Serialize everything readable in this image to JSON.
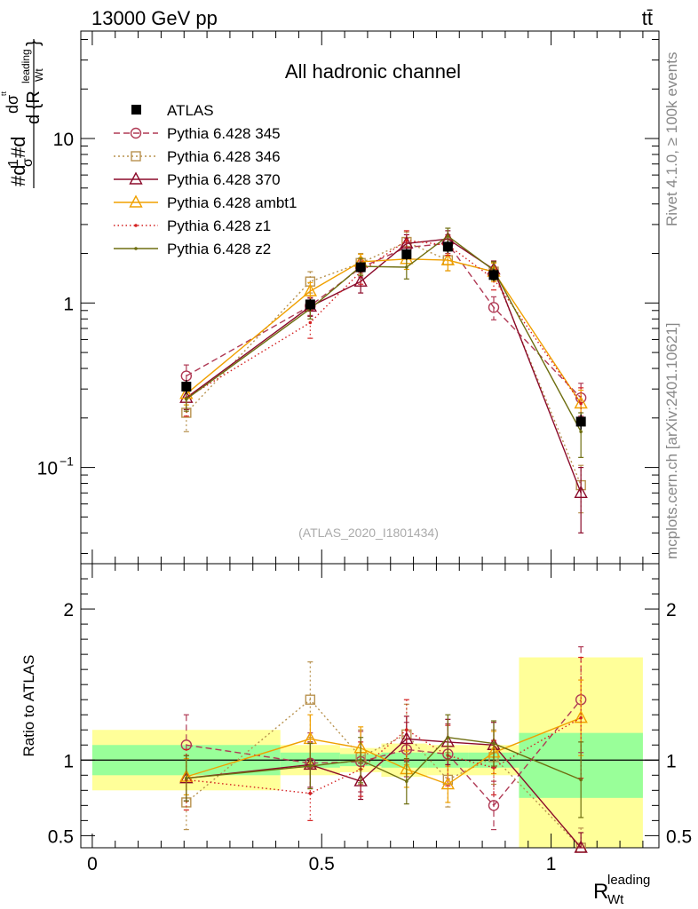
{
  "header": {
    "energy_label": "13000 GeV pp",
    "process_label": "tt̄"
  },
  "side_labels": {
    "rivet_label": "Rivet 4.1.0, ≥ 100k events",
    "source_label": "mcplots.cern.ch [arXiv:2401.10621]"
  },
  "chart_data": [
    {
      "type": "line",
      "panel": "main",
      "title": "All hadronic channel",
      "analysis_tag": "(ATLAS_2020_I1801434)",
      "ylabel_fragments": {
        "hash_d": "#d",
        "one": "1",
        "sigma": "σ",
        "hash_d2": "#d",
        "d_sigma": "dσ",
        "d_sigma_sup": "ᵗᵗ",
        "denominator_d": "d {R",
        "denominator_sup": "leading",
        "denominator_sub": "Wt",
        "close_brace": "}"
      },
      "yscale": "log",
      "ylim": [
        0.026,
        45
      ],
      "xlim": [
        -0.025,
        1.235
      ],
      "yticks": [
        {
          "value": 0.1,
          "base": "10",
          "exp": "−1"
        },
        {
          "value": 1,
          "label": "1"
        },
        {
          "value": 10,
          "label": "10"
        }
      ],
      "x": [
        0.205,
        0.475,
        0.585,
        0.685,
        0.775,
        0.875,
        1.065
      ],
      "bins": [
        [
          0.0,
          0.41
        ],
        [
          0.41,
          0.54
        ],
        [
          0.54,
          0.63
        ],
        [
          0.63,
          0.73
        ],
        [
          0.73,
          0.82
        ],
        [
          0.82,
          0.93
        ],
        [
          0.93,
          1.2
        ]
      ],
      "data": {
        "name": "ATLAS",
        "values": [
          0.31,
          0.98,
          1.65,
          1.98,
          2.2,
          1.48,
          0.19
        ],
        "errors": [
          0.03,
          0.08,
          0.12,
          0.15,
          0.18,
          0.12,
          0.02
        ]
      },
      "series": [
        {
          "name": "Pythia 6.428 345",
          "color": "#b03a55",
          "dash": "7,4",
          "marker": "circle",
          "values": [
            0.36,
            0.96,
            1.64,
            2.18,
            2.3,
            0.94,
            0.265
          ],
          "errors": [
            0.06,
            0.12,
            0.2,
            0.3,
            0.3,
            0.15,
            0.06
          ]
        },
        {
          "name": "Pythia 6.428 346",
          "color": "#b8924f",
          "dash": "2,3",
          "marker": "square",
          "values": [
            0.215,
            1.35,
            1.75,
            2.35,
            1.82,
            1.55,
            0.078
          ],
          "errors": [
            0.05,
            0.2,
            0.25,
            0.35,
            0.25,
            0.2,
            0.025
          ]
        },
        {
          "name": "Pythia 6.428 370",
          "color": "#8b0a2a",
          "dash": "",
          "marker": "triangle",
          "values": [
            0.265,
            0.95,
            1.35,
            2.3,
            2.45,
            1.6,
            0.07
          ],
          "errors": [
            0.04,
            0.12,
            0.2,
            0.3,
            0.3,
            0.2,
            0.03
          ]
        },
        {
          "name": "Pythia 6.428 ambt1",
          "color": "#f0a000",
          "dash": "",
          "marker": "triangle",
          "values": [
            0.28,
            1.18,
            1.78,
            1.85,
            1.82,
            1.55,
            0.245
          ],
          "errors": [
            0.04,
            0.15,
            0.2,
            0.25,
            0.25,
            0.2,
            0.05
          ]
        },
        {
          "name": "Pythia 6.428 z1",
          "color": "#d42020",
          "dash": "1.5,3",
          "marker": "dot",
          "values": [
            0.265,
            0.76,
            1.55,
            2.4,
            2.25,
            1.4,
            0.245
          ],
          "errors": [
            0.06,
            0.15,
            0.25,
            0.35,
            0.3,
            0.2,
            0.06
          ]
        },
        {
          "name": "Pythia 6.428 z2",
          "color": "#6e6e10",
          "dash": "",
          "marker": "dot",
          "values": [
            0.26,
            0.92,
            1.67,
            1.65,
            2.55,
            1.58,
            0.165
          ],
          "errors": [
            0.04,
            0.12,
            0.2,
            0.25,
            0.3,
            0.2,
            0.05
          ]
        }
      ]
    },
    {
      "type": "line",
      "panel": "ratio",
      "ylabel": "Ratio to ATLAS",
      "xlabel_main": "R",
      "xlabel_sup": "leading",
      "xlabel_sub": "Wt",
      "ylim": [
        0.42,
        2.3
      ],
      "xticks": [
        {
          "value": 0,
          "label": "0"
        },
        {
          "value": 0.5,
          "label": "0.5"
        },
        {
          "value": 1,
          "label": "1"
        }
      ],
      "yticks": [
        {
          "value": 0.5,
          "label": "0.5"
        },
        {
          "value": 1,
          "label": "1"
        },
        {
          "value": 2,
          "label": "2"
        }
      ],
      "reference_line": 1,
      "bands": [
        {
          "x0": 0.0,
          "x1": 0.41,
          "inner": [
            0.9,
            1.1
          ],
          "outer": [
            0.8,
            1.2
          ]
        },
        {
          "x0": 0.41,
          "x1": 0.54,
          "inner": [
            0.95,
            1.05
          ],
          "outer": [
            0.9,
            1.1
          ]
        },
        {
          "x0": 0.54,
          "x1": 0.63,
          "inner": [
            0.96,
            1.04
          ],
          "outer": [
            0.92,
            1.08
          ]
        },
        {
          "x0": 0.63,
          "x1": 0.73,
          "inner": [
            0.95,
            1.05
          ],
          "outer": [
            0.89,
            1.11
          ]
        },
        {
          "x0": 0.73,
          "x1": 0.82,
          "inner": [
            0.95,
            1.05
          ],
          "outer": [
            0.9,
            1.1
          ]
        },
        {
          "x0": 0.82,
          "x1": 0.93,
          "inner": [
            0.95,
            1.05
          ],
          "outer": [
            0.9,
            1.1
          ]
        },
        {
          "x0": 0.93,
          "x1": 1.2,
          "inner": [
            0.75,
            1.18
          ],
          "outer": [
            0.36,
            1.68
          ]
        }
      ],
      "series": [
        {
          "name": "Pythia 6.428 345",
          "values": [
            1.1,
            0.98,
            0.99,
            1.07,
            1.04,
            0.7,
            1.4
          ],
          "errors": [
            0.2,
            0.2,
            0.2,
            0.18,
            0.2,
            0.16,
            0.35
          ]
        },
        {
          "name": "Pythia 6.428 346",
          "values": [
            0.72,
            1.4,
            1.02,
            1.17,
            0.87,
            1.02,
            0.4
          ],
          "errors": [
            0.18,
            0.25,
            0.18,
            0.2,
            0.18,
            0.18,
            0.15
          ]
        },
        {
          "name": "Pythia 6.428 370",
          "values": [
            0.88,
            0.97,
            0.86,
            1.14,
            1.12,
            1.1,
            0.37
          ],
          "errors": [
            0.15,
            0.15,
            0.12,
            0.15,
            0.15,
            0.15,
            0.15
          ]
        },
        {
          "name": "Pythia 6.428 ambt1",
          "values": [
            0.89,
            1.14,
            1.08,
            0.94,
            0.84,
            1.05,
            1.28
          ],
          "errors": [
            0.12,
            0.16,
            0.14,
            0.12,
            0.12,
            0.14,
            0.25
          ]
        },
        {
          "name": "Pythia 6.428 z1",
          "values": [
            0.87,
            0.78,
            0.94,
            1.2,
            1.03,
            0.95,
            1.28
          ],
          "errors": [
            0.2,
            0.18,
            0.18,
            0.2,
            0.2,
            0.18,
            0.4
          ]
        },
        {
          "name": "Pythia 6.428 z2",
          "values": [
            0.88,
            0.96,
            1.0,
            0.86,
            1.15,
            1.11,
            0.87
          ],
          "errors": [
            0.15,
            0.15,
            0.15,
            0.15,
            0.15,
            0.15,
            0.25
          ]
        }
      ]
    }
  ]
}
